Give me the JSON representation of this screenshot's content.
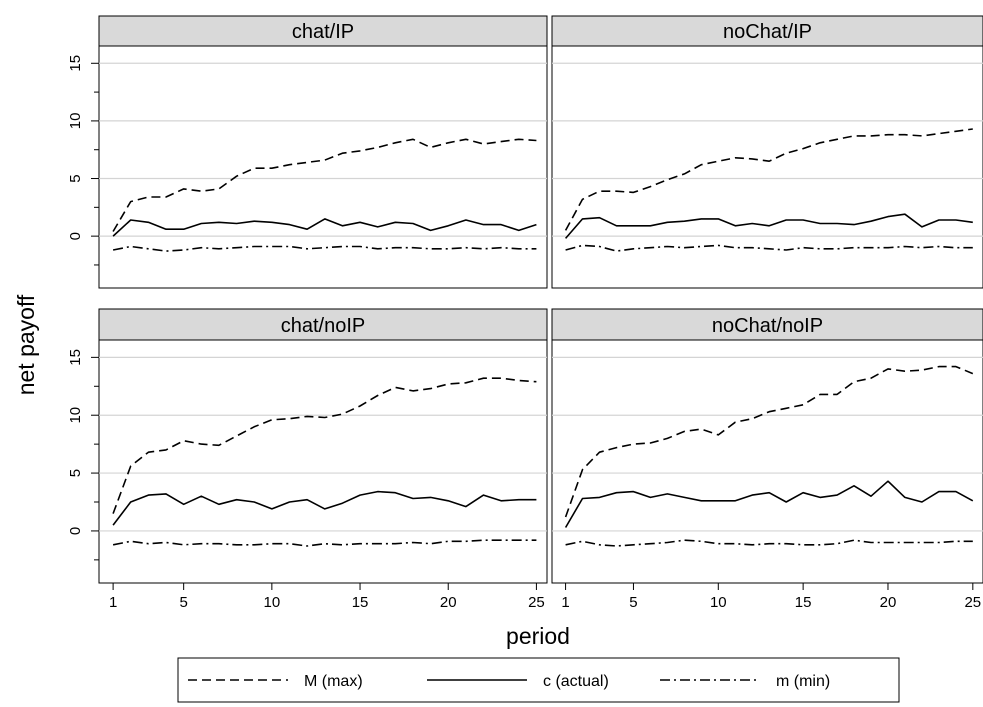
{
  "chart_data": {
    "type": "line",
    "xlabel": "period",
    "ylabel": "net payoff",
    "x": [
      1,
      2,
      3,
      4,
      5,
      6,
      7,
      8,
      9,
      10,
      11,
      12,
      13,
      14,
      15,
      16,
      17,
      18,
      19,
      20,
      21,
      22,
      23,
      24,
      25
    ],
    "xticks": [
      1,
      5,
      10,
      15,
      20,
      25
    ],
    "yticks": [
      0,
      5,
      10,
      15
    ],
    "ylim": [
      -4.5,
      16.5
    ],
    "xlim": [
      0.2,
      25.6
    ],
    "grid": true,
    "legend": {
      "position": "bottom",
      "entries": [
        {
          "label": "M (max)",
          "key": "M",
          "dash": "dashed"
        },
        {
          "label": "c (actual)",
          "key": "c",
          "dash": "solid"
        },
        {
          "label": "m (min)",
          "key": "m",
          "dash": "dashdot"
        }
      ]
    },
    "panels": [
      {
        "title": "chat/IP",
        "series": [
          {
            "key": "M",
            "values": [
              0.4,
              3.0,
              3.4,
              3.4,
              4.1,
              3.9,
              4.1,
              5.2,
              5.9,
              5.9,
              6.2,
              6.4,
              6.6,
              7.2,
              7.4,
              7.7,
              8.1,
              8.4,
              7.7,
              8.1,
              8.4,
              8.0,
              8.2,
              8.4,
              8.3
            ]
          },
          {
            "key": "c",
            "values": [
              0.0,
              1.4,
              1.2,
              0.6,
              0.6,
              1.1,
              1.2,
              1.1,
              1.3,
              1.2,
              1.0,
              0.6,
              1.5,
              0.9,
              1.2,
              0.8,
              1.2,
              1.1,
              0.5,
              0.9,
              1.4,
              1.0,
              1.0,
              0.5,
              1.0
            ]
          },
          {
            "key": "m",
            "values": [
              -1.2,
              -0.9,
              -1.1,
              -1.3,
              -1.2,
              -1.0,
              -1.1,
              -1.0,
              -0.9,
              -0.9,
              -0.9,
              -1.1,
              -1.0,
              -0.9,
              -0.9,
              -1.1,
              -1.0,
              -1.0,
              -1.1,
              -1.1,
              -1.0,
              -1.1,
              -1.0,
              -1.1,
              -1.1
            ]
          }
        ]
      },
      {
        "title": "noChat/IP",
        "series": [
          {
            "key": "M",
            "values": [
              0.5,
              3.2,
              3.9,
              3.9,
              3.8,
              4.3,
              4.9,
              5.4,
              6.2,
              6.5,
              6.8,
              6.7,
              6.5,
              7.2,
              7.6,
              8.1,
              8.4,
              8.7,
              8.7,
              8.8,
              8.8,
              8.7,
              8.9,
              9.1,
              9.3
            ]
          },
          {
            "key": "c",
            "values": [
              -0.2,
              1.5,
              1.6,
              0.9,
              0.9,
              0.9,
              1.2,
              1.3,
              1.5,
              1.5,
              0.9,
              1.1,
              0.9,
              1.4,
              1.4,
              1.1,
              1.1,
              1.0,
              1.3,
              1.7,
              1.9,
              0.8,
              1.4,
              1.4,
              1.2
            ]
          },
          {
            "key": "m",
            "values": [
              -1.2,
              -0.8,
              -0.9,
              -1.3,
              -1.1,
              -1.0,
              -0.9,
              -1.0,
              -0.9,
              -0.8,
              -1.0,
              -1.0,
              -1.1,
              -1.2,
              -1.0,
              -1.1,
              -1.1,
              -1.0,
              -1.0,
              -1.0,
              -0.9,
              -1.0,
              -0.9,
              -1.0,
              -1.0
            ]
          }
        ]
      },
      {
        "title": "chat/noIP",
        "series": [
          {
            "key": "M",
            "values": [
              1.5,
              5.6,
              6.8,
              7.0,
              7.8,
              7.5,
              7.4,
              8.2,
              9.0,
              9.6,
              9.7,
              9.9,
              9.8,
              10.1,
              10.8,
              11.7,
              12.4,
              12.1,
              12.3,
              12.7,
              12.8,
              13.2,
              13.2,
              13.0,
              12.9
            ]
          },
          {
            "key": "c",
            "values": [
              0.5,
              2.5,
              3.1,
              3.2,
              2.3,
              3.0,
              2.3,
              2.7,
              2.5,
              1.9,
              2.5,
              2.7,
              1.9,
              2.4,
              3.1,
              3.4,
              3.3,
              2.8,
              2.9,
              2.6,
              2.1,
              3.1,
              2.6,
              2.7,
              2.7
            ]
          },
          {
            "key": "m",
            "values": [
              -1.2,
              -0.9,
              -1.1,
              -1.0,
              -1.2,
              -1.1,
              -1.1,
              -1.2,
              -1.2,
              -1.1,
              -1.1,
              -1.3,
              -1.1,
              -1.2,
              -1.1,
              -1.1,
              -1.1,
              -1.0,
              -1.1,
              -0.9,
              -0.9,
              -0.8,
              -0.8,
              -0.8,
              -0.8
            ]
          }
        ]
      },
      {
        "title": "noChat/noIP",
        "series": [
          {
            "key": "M",
            "values": [
              1.2,
              5.3,
              6.8,
              7.2,
              7.5,
              7.6,
              8.0,
              8.6,
              8.8,
              8.3,
              9.4,
              9.7,
              10.3,
              10.6,
              10.9,
              11.8,
              11.8,
              12.9,
              13.2,
              14.0,
              13.8,
              13.9,
              14.2,
              14.2,
              13.6
            ]
          },
          {
            "key": "c",
            "values": [
              0.3,
              2.8,
              2.9,
              3.3,
              3.4,
              2.9,
              3.2,
              2.9,
              2.6,
              2.6,
              2.6,
              3.1,
              3.3,
              2.5,
              3.3,
              2.9,
              3.1,
              3.9,
              3.0,
              4.3,
              2.9,
              2.5,
              3.4,
              3.4,
              2.6
            ]
          },
          {
            "key": "m",
            "values": [
              -1.2,
              -0.9,
              -1.2,
              -1.3,
              -1.2,
              -1.1,
              -1.0,
              -0.8,
              -0.9,
              -1.1,
              -1.1,
              -1.2,
              -1.1,
              -1.1,
              -1.2,
              -1.2,
              -1.1,
              -0.8,
              -1.0,
              -1.0,
              -1.0,
              -1.0,
              -1.0,
              -0.9,
              -0.9
            ]
          }
        ]
      }
    ]
  }
}
